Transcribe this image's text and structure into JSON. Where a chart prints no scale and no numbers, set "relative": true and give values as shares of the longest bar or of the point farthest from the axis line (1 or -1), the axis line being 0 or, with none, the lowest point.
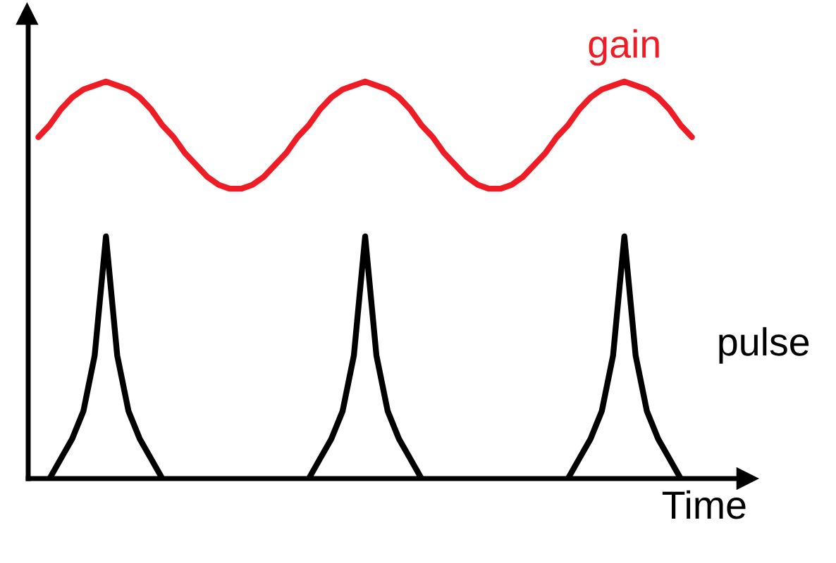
{
  "chart_data": {
    "type": "line",
    "relative": true,
    "xlabel": "Time",
    "legend": false,
    "line_style": "solid",
    "marker": "none",
    "categories": [
      null,
      null,
      null,
      null,
      null,
      null,
      null,
      null,
      null,
      null,
      null,
      null,
      null,
      null,
      null,
      null,
      null,
      null,
      null,
      null,
      null,
      null,
      null,
      null,
      null,
      null,
      null,
      null,
      null,
      null,
      null,
      null,
      null,
      null,
      null,
      null,
      null,
      null,
      null,
      null,
      null,
      null,
      null,
      null,
      null,
      null,
      null,
      null,
      null,
      null,
      null,
      null,
      null,
      null,
      null,
      null,
      null,
      null,
      null,
      null,
      null
    ],
    "series": [
      {
        "name": "gain",
        "color": "#ee1c25",
        "values": [
          null,
          0.86,
          0.89,
          0.93,
          0.96,
          0.98,
          0.99,
          1.0,
          0.99,
          0.98,
          0.96,
          0.93,
          0.89,
          0.86,
          0.82,
          0.79,
          0.76,
          0.74,
          0.73,
          0.73,
          0.74,
          0.76,
          0.79,
          0.82,
          0.86,
          0.89,
          0.93,
          0.96,
          0.98,
          0.99,
          1.0,
          0.99,
          0.98,
          0.96,
          0.93,
          0.89,
          0.86,
          0.82,
          0.79,
          0.76,
          0.74,
          0.73,
          0.73,
          0.74,
          0.76,
          0.79,
          0.82,
          0.86,
          0.89,
          0.93,
          0.96,
          0.98,
          0.99,
          1.0,
          0.99,
          0.98,
          0.96,
          0.93,
          0.89,
          0.86,
          null
        ]
      },
      {
        "name": "pulse",
        "color": "#000000",
        "values": [
          null,
          null,
          0,
          0.05,
          0.1,
          0.17,
          0.31,
          0.61,
          0.31,
          0.17,
          0.1,
          0.05,
          0,
          null,
          null,
          null,
          null,
          null,
          null,
          null,
          null,
          null,
          null,
          null,
          null,
          0,
          0.05,
          0.1,
          0.17,
          0.31,
          0.61,
          0.31,
          0.17,
          0.1,
          0.05,
          0,
          null,
          null,
          null,
          null,
          null,
          null,
          null,
          null,
          null,
          null,
          null,
          null,
          0,
          0.05,
          0.1,
          0.17,
          0.31,
          0.61,
          0.31,
          0.17,
          0.1,
          0.05,
          0,
          null,
          null
        ]
      }
    ]
  }
}
